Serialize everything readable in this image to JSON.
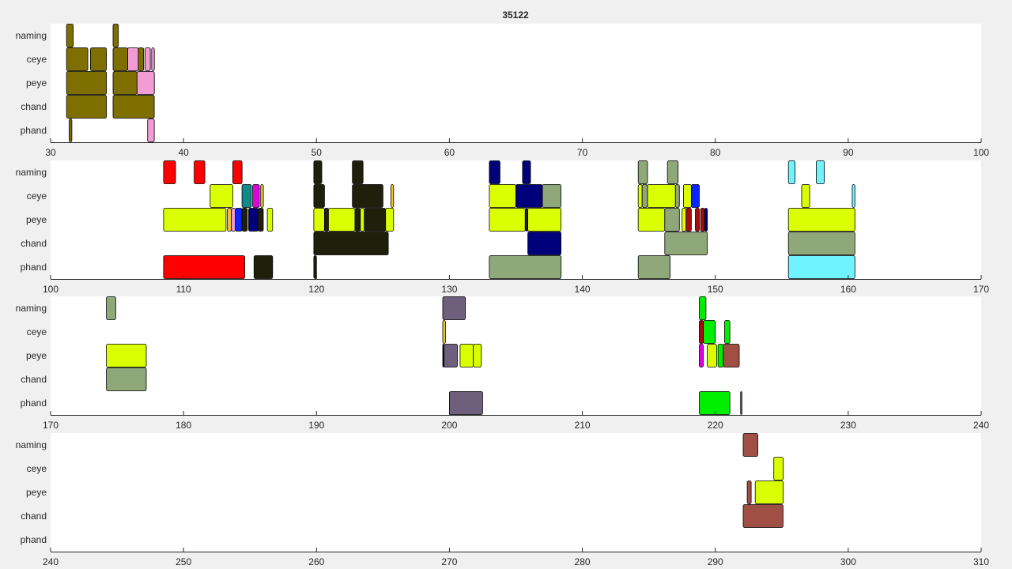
{
  "chart_data": {
    "type": "timeline",
    "title": "35122",
    "rows": [
      "naming",
      "ceye",
      "peye",
      "chand",
      "phand"
    ],
    "colors": {
      "olive": "#7f6f00",
      "pink": "#f29cd6",
      "red": "#ff0000",
      "lime": "#d9ff00",
      "darkolive": "#1e200b",
      "navy": "#00007a",
      "sage": "#8fa87a",
      "cyan": "#70f2ff",
      "teal": "#138a8a",
      "magenta": "#e000e0",
      "blue": "#0a25ff",
      "gold": "#f2c230",
      "darkred": "#a60c0c",
      "green": "#00ee00",
      "purple": "#6e5f7d",
      "brown": "#9f4f43",
      "white": "#ffffff"
    },
    "panels": [
      {
        "name": "panel-1",
        "xlim": [
          30,
          100
        ],
        "xticks": [
          "30",
          "40",
          "50",
          "60",
          "70",
          "80",
          "90",
          "100"
        ],
        "segments": [
          {
            "row": "naming",
            "start": 31.2,
            "end": 31.7,
            "color": "olive"
          },
          {
            "row": "naming",
            "start": 34.7,
            "end": 35.1,
            "color": "olive"
          },
          {
            "row": "ceye",
            "start": 31.2,
            "end": 32.8,
            "color": "olive"
          },
          {
            "row": "ceye",
            "start": 33.0,
            "end": 34.2,
            "color": "olive"
          },
          {
            "row": "ceye",
            "start": 34.7,
            "end": 35.8,
            "color": "olive"
          },
          {
            "row": "ceye",
            "start": 35.8,
            "end": 36.6,
            "color": "pink"
          },
          {
            "row": "ceye",
            "start": 36.6,
            "end": 37.0,
            "color": "olive"
          },
          {
            "row": "ceye",
            "start": 37.1,
            "end": 37.5,
            "color": "pink"
          },
          {
            "row": "ceye",
            "start": 37.6,
            "end": 37.8,
            "color": "pink"
          },
          {
            "row": "peye",
            "start": 31.2,
            "end": 34.2,
            "color": "olive"
          },
          {
            "row": "peye",
            "start": 34.7,
            "end": 36.5,
            "color": "olive"
          },
          {
            "row": "peye",
            "start": 36.5,
            "end": 37.8,
            "color": "pink"
          },
          {
            "row": "chand",
            "start": 31.2,
            "end": 34.2,
            "color": "olive"
          },
          {
            "row": "chand",
            "start": 34.7,
            "end": 37.8,
            "color": "olive"
          },
          {
            "row": "phand",
            "start": 31.4,
            "end": 31.6,
            "color": "olive"
          },
          {
            "row": "phand",
            "start": 37.3,
            "end": 37.8,
            "color": "pink"
          }
        ]
      },
      {
        "name": "panel-2",
        "xlim": [
          100,
          170
        ],
        "xticks": [
          "100",
          "110",
          "120",
          "130",
          "140",
          "150",
          "160",
          "170"
        ],
        "segments": [
          {
            "row": "naming",
            "start": 108.5,
            "end": 109.4,
            "color": "red"
          },
          {
            "row": "naming",
            "start": 110.8,
            "end": 111.6,
            "color": "red"
          },
          {
            "row": "naming",
            "start": 113.7,
            "end": 114.4,
            "color": "red"
          },
          {
            "row": "ceye",
            "start": 112.0,
            "end": 113.7,
            "color": "lime"
          },
          {
            "row": "ceye",
            "start": 114.4,
            "end": 115.1,
            "color": "teal"
          },
          {
            "row": "ceye",
            "start": 115.2,
            "end": 115.7,
            "color": "magenta"
          },
          {
            "row": "ceye",
            "start": 115.8,
            "end": 116.0,
            "color": "gold"
          },
          {
            "row": "peye",
            "start": 108.5,
            "end": 113.2,
            "color": "lime"
          },
          {
            "row": "peye",
            "start": 113.3,
            "end": 113.6,
            "color": "gold"
          },
          {
            "row": "peye",
            "start": 113.6,
            "end": 113.9,
            "color": "pink"
          },
          {
            "row": "peye",
            "start": 113.9,
            "end": 114.4,
            "color": "blue"
          },
          {
            "row": "peye",
            "start": 114.4,
            "end": 114.8,
            "color": "darkolive"
          },
          {
            "row": "peye",
            "start": 114.9,
            "end": 115.6,
            "color": "navy"
          },
          {
            "row": "peye",
            "start": 115.6,
            "end": 116.0,
            "color": "darkolive"
          },
          {
            "row": "peye",
            "start": 116.3,
            "end": 116.7,
            "color": "lime"
          },
          {
            "row": "phand",
            "start": 108.5,
            "end": 114.6,
            "color": "red"
          },
          {
            "row": "phand",
            "start": 115.3,
            "end": 116.7,
            "color": "darkolive"
          },
          {
            "row": "naming",
            "start": 119.8,
            "end": 120.4,
            "color": "darkolive"
          },
          {
            "row": "naming",
            "start": 122.7,
            "end": 123.5,
            "color": "darkolive"
          },
          {
            "row": "ceye",
            "start": 119.8,
            "end": 120.6,
            "color": "darkolive"
          },
          {
            "row": "ceye",
            "start": 122.7,
            "end": 125.0,
            "color": "darkolive"
          },
          {
            "row": "ceye",
            "start": 125.6,
            "end": 125.8,
            "color": "gold"
          },
          {
            "row": "peye",
            "start": 119.8,
            "end": 120.6,
            "color": "lime"
          },
          {
            "row": "peye",
            "start": 120.6,
            "end": 120.9,
            "color": "darkolive"
          },
          {
            "row": "peye",
            "start": 120.9,
            "end": 122.9,
            "color": "lime"
          },
          {
            "row": "peye",
            "start": 122.9,
            "end": 123.3,
            "color": "darkolive"
          },
          {
            "row": "peye",
            "start": 123.3,
            "end": 123.6,
            "color": "lime"
          },
          {
            "row": "peye",
            "start": 123.6,
            "end": 125.2,
            "color": "darkolive"
          },
          {
            "row": "peye",
            "start": 125.2,
            "end": 125.8,
            "color": "lime"
          },
          {
            "row": "chand",
            "start": 119.8,
            "end": 125.4,
            "color": "darkolive"
          },
          {
            "row": "phand",
            "start": 119.8,
            "end": 120.0,
            "color": "darkolive"
          },
          {
            "row": "naming",
            "start": 133.0,
            "end": 133.8,
            "color": "navy"
          },
          {
            "row": "naming",
            "start": 135.5,
            "end": 136.1,
            "color": "navy"
          },
          {
            "row": "ceye",
            "start": 133.0,
            "end": 135.0,
            "color": "lime"
          },
          {
            "row": "ceye",
            "start": 135.0,
            "end": 137.0,
            "color": "navy"
          },
          {
            "row": "ceye",
            "start": 137.0,
            "end": 138.4,
            "color": "sage"
          },
          {
            "row": "peye",
            "start": 133.0,
            "end": 135.7,
            "color": "lime"
          },
          {
            "row": "peye",
            "start": 135.7,
            "end": 135.9,
            "color": "darkolive"
          },
          {
            "row": "peye",
            "start": 135.9,
            "end": 138.4,
            "color": "lime"
          },
          {
            "row": "chand",
            "start": 135.9,
            "end": 138.4,
            "color": "navy"
          },
          {
            "row": "phand",
            "start": 133.0,
            "end": 138.4,
            "color": "sage"
          },
          {
            "row": "naming",
            "start": 144.2,
            "end": 144.9,
            "color": "sage"
          },
          {
            "row": "naming",
            "start": 146.4,
            "end": 147.2,
            "color": "sage"
          },
          {
            "row": "ceye",
            "start": 144.2,
            "end": 144.5,
            "color": "lime"
          },
          {
            "row": "ceye",
            "start": 144.5,
            "end": 144.9,
            "color": "sage"
          },
          {
            "row": "ceye",
            "start": 144.9,
            "end": 147.0,
            "color": "lime"
          },
          {
            "row": "ceye",
            "start": 147.0,
            "end": 147.3,
            "color": "sage"
          },
          {
            "row": "ceye",
            "start": 147.6,
            "end": 148.2,
            "color": "lime"
          },
          {
            "row": "ceye",
            "start": 148.2,
            "end": 148.8,
            "color": "blue"
          },
          {
            "row": "peye",
            "start": 144.2,
            "end": 146.2,
            "color": "lime"
          },
          {
            "row": "peye",
            "start": 146.2,
            "end": 147.3,
            "color": "sage"
          },
          {
            "row": "peye",
            "start": 147.5,
            "end": 147.8,
            "color": "lime"
          },
          {
            "row": "peye",
            "start": 147.8,
            "end": 148.2,
            "color": "darkred"
          },
          {
            "row": "peye",
            "start": 148.5,
            "end": 148.8,
            "color": "darkred"
          },
          {
            "row": "peye",
            "start": 148.9,
            "end": 149.2,
            "color": "darkred"
          },
          {
            "row": "peye",
            "start": 149.2,
            "end": 149.4,
            "color": "navy"
          },
          {
            "row": "chand",
            "start": 146.2,
            "end": 149.4,
            "color": "sage"
          },
          {
            "row": "phand",
            "start": 144.2,
            "end": 146.6,
            "color": "sage"
          },
          {
            "row": "naming",
            "start": 155.5,
            "end": 156.0,
            "color": "cyan"
          },
          {
            "row": "naming",
            "start": 157.6,
            "end": 158.2,
            "color": "cyan"
          },
          {
            "row": "ceye",
            "start": 156.5,
            "end": 157.1,
            "color": "lime"
          },
          {
            "row": "ceye",
            "start": 160.3,
            "end": 160.5,
            "color": "cyan"
          },
          {
            "row": "peye",
            "start": 155.5,
            "end": 160.5,
            "color": "lime"
          },
          {
            "row": "chand",
            "start": 155.5,
            "end": 160.5,
            "color": "sage"
          },
          {
            "row": "phand",
            "start": 155.5,
            "end": 160.5,
            "color": "cyan"
          }
        ]
      },
      {
        "name": "panel-3",
        "xlim": [
          170,
          240
        ],
        "xticks": [
          "170",
          "180",
          "190",
          "200",
          "210",
          "220",
          "230",
          "240"
        ],
        "segments": [
          {
            "row": "naming",
            "start": 174.2,
            "end": 174.9,
            "color": "sage"
          },
          {
            "row": "peye",
            "start": 174.2,
            "end": 177.2,
            "color": "lime"
          },
          {
            "row": "chand",
            "start": 174.2,
            "end": 177.2,
            "color": "sage"
          },
          {
            "row": "naming",
            "start": 199.5,
            "end": 201.2,
            "color": "purple"
          },
          {
            "row": "ceye",
            "start": 199.5,
            "end": 199.7,
            "color": "gold"
          },
          {
            "row": "peye",
            "start": 199.5,
            "end": 199.6,
            "color": "darkolive"
          },
          {
            "row": "peye",
            "start": 199.6,
            "end": 200.6,
            "color": "purple"
          },
          {
            "row": "peye",
            "start": 200.8,
            "end": 201.8,
            "color": "lime"
          },
          {
            "row": "peye",
            "start": 201.8,
            "end": 202.4,
            "color": "lime"
          },
          {
            "row": "phand",
            "start": 200.0,
            "end": 202.5,
            "color": "purple"
          },
          {
            "row": "naming",
            "start": 218.8,
            "end": 219.3,
            "color": "green"
          },
          {
            "row": "ceye",
            "start": 218.8,
            "end": 219.1,
            "color": "darkred"
          },
          {
            "row": "ceye",
            "start": 219.1,
            "end": 220.0,
            "color": "green"
          },
          {
            "row": "ceye",
            "start": 220.7,
            "end": 221.1,
            "color": "green"
          },
          {
            "row": "peye",
            "start": 218.8,
            "end": 219.1,
            "color": "magenta"
          },
          {
            "row": "peye",
            "start": 219.4,
            "end": 220.1,
            "color": "lime"
          },
          {
            "row": "peye",
            "start": 220.2,
            "end": 220.6,
            "color": "green"
          },
          {
            "row": "peye",
            "start": 220.6,
            "end": 221.8,
            "color": "brown"
          },
          {
            "row": "phand",
            "start": 218.8,
            "end": 221.1,
            "color": "green"
          },
          {
            "row": "phand",
            "start": 221.9,
            "end": 222.0,
            "color": "brown"
          }
        ]
      },
      {
        "name": "panel-4",
        "xlim": [
          240,
          310
        ],
        "xticks": [
          "240",
          "250",
          "260",
          "270",
          "280",
          "290",
          "300",
          "310"
        ],
        "segments": [
          {
            "row": "naming",
            "start": 292.1,
            "end": 293.2,
            "color": "brown"
          },
          {
            "row": "ceye",
            "start": 294.4,
            "end": 295.1,
            "color": "lime"
          },
          {
            "row": "peye",
            "start": 292.4,
            "end": 292.7,
            "color": "brown"
          },
          {
            "row": "peye",
            "start": 293.0,
            "end": 295.1,
            "color": "lime"
          },
          {
            "row": "chand",
            "start": 292.1,
            "end": 295.1,
            "color": "brown"
          }
        ]
      }
    ]
  }
}
